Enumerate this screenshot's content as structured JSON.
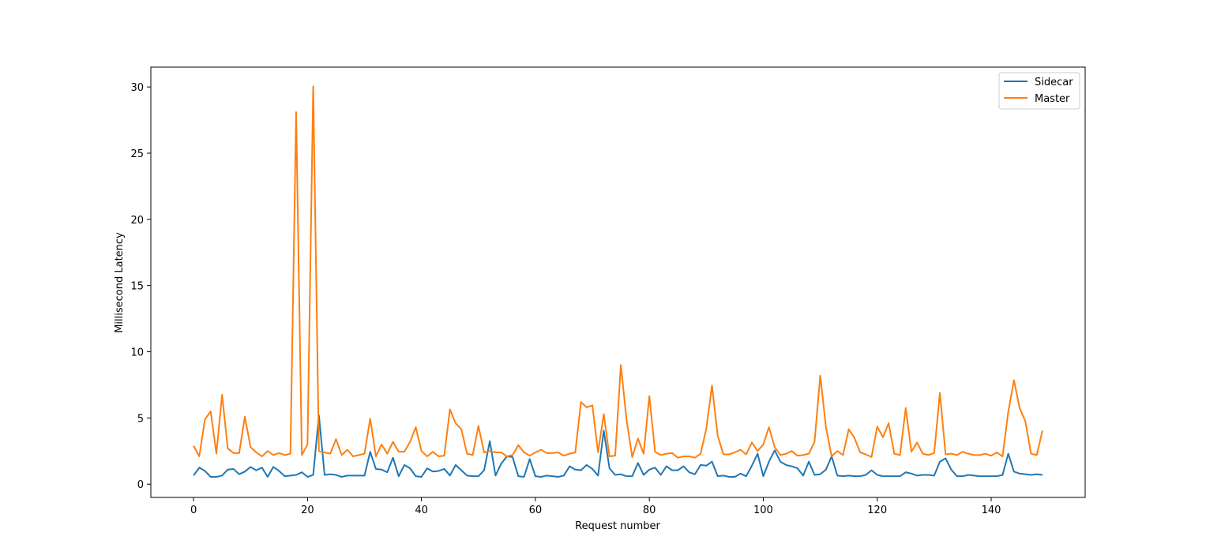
{
  "chart_data": {
    "type": "line",
    "title": "",
    "xlabel": "Request number",
    "ylabel": "Millisecond Latency",
    "xlim": [
      -7.5,
      156.5
    ],
    "ylim": [
      -1.0,
      31.5
    ],
    "xticks": [
      0,
      20,
      40,
      60,
      80,
      100,
      120,
      140
    ],
    "yticks": [
      0,
      5,
      10,
      15,
      20,
      25,
      30
    ],
    "grid": false,
    "legend_position": "top-right",
    "series": [
      {
        "name": "Sidecar",
        "color": "#1f77b4",
        "values": [
          0.65,
          1.25,
          1.0,
          0.55,
          0.55,
          0.65,
          1.1,
          1.15,
          0.75,
          0.95,
          1.3,
          1.05,
          1.25,
          0.55,
          1.3,
          1.0,
          0.6,
          0.65,
          0.7,
          0.9,
          0.55,
          0.7,
          5.2,
          0.7,
          0.75,
          0.7,
          0.55,
          0.65,
          0.65,
          0.65,
          0.65,
          2.45,
          1.15,
          1.1,
          0.9,
          2.0,
          0.6,
          1.45,
          1.2,
          0.6,
          0.55,
          1.2,
          0.95,
          1.0,
          1.15,
          0.65,
          1.45,
          1.05,
          0.65,
          0.6,
          0.6,
          1.05,
          3.25,
          0.65,
          1.55,
          2.1,
          2.05,
          0.6,
          0.55,
          1.9,
          0.6,
          0.55,
          0.65,
          0.6,
          0.55,
          0.65,
          1.35,
          1.1,
          1.05,
          1.45,
          1.15,
          0.65,
          4.05,
          1.2,
          0.7,
          0.75,
          0.6,
          0.6,
          1.6,
          0.7,
          1.1,
          1.25,
          0.7,
          1.35,
          1.05,
          1.05,
          1.35,
          0.9,
          0.75,
          1.45,
          1.4,
          1.7,
          0.6,
          0.65,
          0.55,
          0.55,
          0.8,
          0.6,
          1.4,
          2.3,
          0.6,
          1.7,
          2.55,
          1.7,
          1.45,
          1.35,
          1.2,
          0.65,
          1.7,
          0.7,
          0.75,
          1.1,
          2.1,
          0.65,
          0.6,
          0.65,
          0.6,
          0.6,
          0.7,
          1.05,
          0.7,
          0.6,
          0.6,
          0.6,
          0.6,
          0.9,
          0.8,
          0.65,
          0.7,
          0.7,
          0.65,
          1.7,
          1.95,
          1.1,
          0.6,
          0.6,
          0.7,
          0.65,
          0.6,
          0.6,
          0.6,
          0.6,
          0.7,
          2.3,
          0.95,
          0.8,
          0.75,
          0.7,
          0.75,
          0.7
        ]
      },
      {
        "name": "Master",
        "color": "#ff7f0e",
        "values": [
          2.9,
          2.1,
          4.9,
          5.5,
          2.3,
          6.75,
          2.7,
          2.35,
          2.35,
          5.1,
          2.8,
          2.4,
          2.1,
          2.5,
          2.2,
          2.35,
          2.2,
          2.3,
          28.1,
          2.2,
          3.0,
          30.05,
          2.5,
          2.4,
          2.3,
          3.4,
          2.2,
          2.6,
          2.1,
          2.2,
          2.3,
          4.95,
          2.1,
          3.0,
          2.3,
          3.2,
          2.45,
          2.45,
          3.2,
          4.3,
          2.5,
          2.1,
          2.45,
          2.1,
          2.15,
          5.65,
          4.6,
          4.15,
          2.3,
          2.2,
          4.4,
          2.4,
          2.5,
          2.4,
          2.4,
          2.1,
          2.2,
          2.95,
          2.4,
          2.15,
          2.4,
          2.6,
          2.35,
          2.35,
          2.4,
          2.15,
          2.3,
          2.4,
          6.2,
          5.8,
          5.95,
          2.4,
          5.3,
          2.1,
          2.15,
          9.0,
          4.85,
          2.05,
          3.45,
          2.3,
          6.65,
          2.45,
          2.2,
          2.3,
          2.35,
          2.0,
          2.1,
          2.1,
          2.0,
          2.3,
          4.2,
          7.45,
          3.65,
          2.25,
          2.25,
          2.4,
          2.6,
          2.25,
          3.15,
          2.5,
          3.0,
          4.3,
          2.8,
          2.2,
          2.3,
          2.5,
          2.15,
          2.2,
          2.3,
          3.2,
          8.2,
          4.3,
          2.1,
          2.5,
          2.2,
          4.15,
          3.5,
          2.4,
          2.25,
          2.05,
          4.35,
          3.55,
          4.6,
          2.3,
          2.2,
          5.75,
          2.45,
          3.15,
          2.3,
          2.2,
          2.35,
          6.9,
          2.25,
          2.3,
          2.2,
          2.45,
          2.3,
          2.2,
          2.2,
          2.3,
          2.15,
          2.4,
          2.1,
          5.45,
          7.85,
          5.75,
          4.75,
          2.3,
          2.2,
          4.05
        ]
      }
    ]
  }
}
